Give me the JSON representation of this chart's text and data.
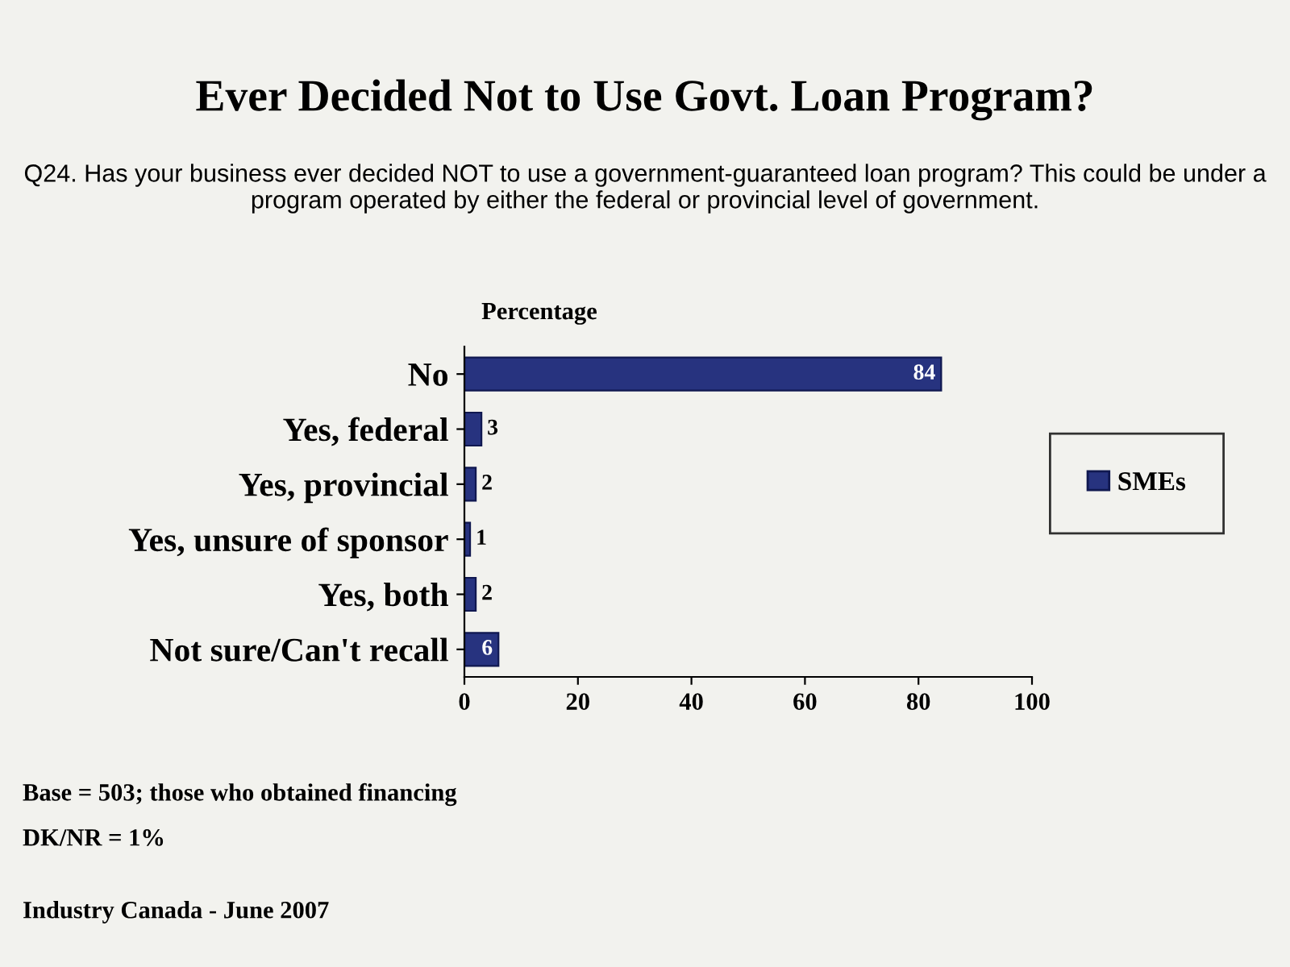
{
  "chart_data": {
    "type": "bar",
    "orientation": "horizontal",
    "title": "Ever Decided Not to Use Govt. Loan Program?",
    "subtitle": "Q24. Has your business ever decided NOT to use a government-guaranteed loan program? This could be under a program operated by either the federal or provincial level of government.",
    "xlabel": "Percentage",
    "categories": [
      "No",
      "Yes, federal",
      "Yes, provincial",
      "Yes, unsure of sponsor",
      "Yes, both",
      "Not sure/Can't recall"
    ],
    "series": [
      {
        "name": "SMEs",
        "color": "#27337f",
        "values": [
          84,
          3,
          2,
          1,
          2,
          6
        ]
      }
    ],
    "xlim": [
      0,
      100
    ],
    "xticks": [
      0,
      20,
      40,
      60,
      80,
      100
    ],
    "data_labels": true,
    "legend": "right",
    "grid": false,
    "annotations": [
      "Base = 503; those who obtained financing",
      "DK/NR = 1%",
      "Industry Canada - June 2007"
    ]
  }
}
